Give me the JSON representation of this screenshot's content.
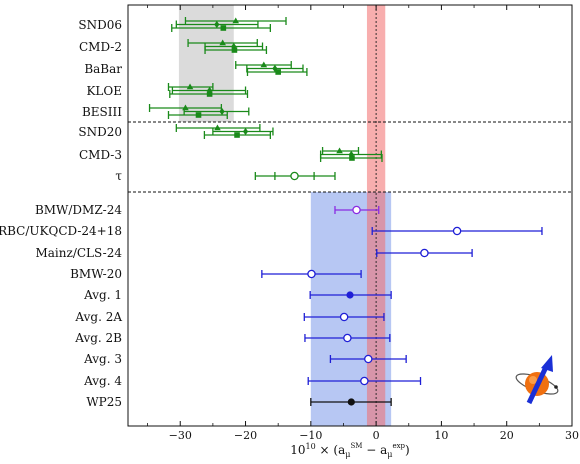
{
  "chart_data": {
    "type": "scatter",
    "xlabel": "10^10 × (a_μ^SM − a_μ^exp)",
    "xlabel_parts": {
      "prefix": "10",
      "exp": "10",
      "mid": " × (a",
      "sub1": "μ",
      "sup1": "SM",
      "dash": " − a",
      "sub2": "μ",
      "sup2": "exp",
      "suffix": ")"
    },
    "xlim": [
      -38,
      30
    ],
    "xticks": [
      -30,
      -20,
      -10,
      0,
      10,
      20,
      30
    ],
    "grid": false,
    "colors": {
      "data_driven": "#1a8a1a",
      "lattice_purple": "#8a2be2",
      "lattice_blue": "#1f1fd6",
      "average": "#111111",
      "experiment_band": "#f26b6b",
      "wp25_band": "#6f8fe8",
      "excluded_band": "#bdbdbd"
    },
    "bands": {
      "experiment": [
        -1.4,
        1.4
      ],
      "wp25": [
        -10.0,
        2.3
      ],
      "gray": [
        -30.2,
        -21.8
      ]
    },
    "groups": [
      {
        "label": "SND06",
        "points": [
          {
            "x": -21.5,
            "lo": -29.2,
            "hi": -13.8,
            "marker": "triangle"
          },
          {
            "x": -24.4,
            "lo": -30.6,
            "hi": -18.1,
            "marker": "diamond"
          },
          {
            "x": -23.4,
            "lo": -31.3,
            "hi": -16.2,
            "marker": "square"
          }
        ]
      },
      {
        "label": "CMD-2",
        "points": [
          {
            "x": -23.5,
            "lo": -28.8,
            "hi": -18.2,
            "marker": "triangle"
          },
          {
            "x": -21.8,
            "lo": -26.2,
            "hi": -17.4,
            "marker": "diamond"
          },
          {
            "x": -21.7,
            "lo": -26.2,
            "hi": -16.8,
            "marker": "square"
          }
        ]
      },
      {
        "label": "BaBar",
        "points": [
          {
            "x": -17.2,
            "lo": -21.5,
            "hi": -13.0,
            "marker": "triangle"
          },
          {
            "x": -15.5,
            "lo": -19.8,
            "hi": -11.2,
            "marker": "diamond"
          },
          {
            "x": -15.0,
            "lo": -19.7,
            "hi": -10.6,
            "marker": "square"
          }
        ]
      },
      {
        "label": "KLOE",
        "points": [
          {
            "x": -28.5,
            "lo": -31.8,
            "hi": -25.0,
            "marker": "triangle"
          },
          {
            "x": -25.5,
            "lo": -31.2,
            "hi": -20.0,
            "marker": "diamond"
          },
          {
            "x": -25.5,
            "lo": -31.6,
            "hi": -19.7,
            "marker": "square"
          }
        ]
      },
      {
        "label": "BESIII",
        "points": [
          {
            "x": -29.2,
            "lo": -34.7,
            "hi": -23.7,
            "marker": "triangle"
          },
          {
            "x": -23.6,
            "lo": -29.4,
            "hi": -19.5,
            "marker": "diamond"
          },
          {
            "x": -27.2,
            "lo": -31.8,
            "hi": -22.8,
            "marker": "square"
          }
        ]
      },
      {
        "label": "SND20",
        "points": [
          {
            "x": -24.3,
            "lo": -30.6,
            "hi": -17.8,
            "marker": "triangle"
          },
          {
            "x": -20.0,
            "lo": -25.0,
            "hi": -15.8,
            "marker": "diamond"
          },
          {
            "x": -21.3,
            "lo": -26.3,
            "hi": -16.2,
            "marker": "square"
          }
        ]
      },
      {
        "label": "CMD-3",
        "points": [
          {
            "x": -5.6,
            "lo": -8.2,
            "hi": -2.7,
            "marker": "triangle"
          },
          {
            "x": -3.8,
            "lo": -8.5,
            "hi": 0.8,
            "marker": "diamond"
          },
          {
            "x": -3.7,
            "lo": -8.5,
            "hi": 0.9,
            "marker": "square"
          }
        ]
      },
      {
        "label": "τ",
        "points": [
          {
            "x": -12.5,
            "lo": -18.5,
            "hi": -6.3,
            "marker": "open-circle",
            "inner_lo": -15.5,
            "inner_hi": -9.5
          }
        ]
      }
    ],
    "lattice": [
      {
        "label": "BMW/DMZ-24",
        "x": -3.0,
        "lo": -6.3,
        "hi": 0.4,
        "marker": "open-circle",
        "color": "lattice_purple"
      },
      {
        "label": "RBC/UKQCD-24+18",
        "x": 12.4,
        "lo": -0.6,
        "hi": 25.4,
        "marker": "open-circle",
        "color": "lattice_blue"
      },
      {
        "label": "Mainz/CLS-24",
        "x": 7.4,
        "lo": 0.1,
        "hi": 14.7,
        "marker": "open-circle",
        "color": "lattice_blue"
      },
      {
        "label": "BMW-20",
        "x": -9.9,
        "lo": -17.5,
        "hi": -2.3,
        "marker": "open-circle",
        "color": "lattice_blue"
      },
      {
        "label": "Avg. 1",
        "x": -4.0,
        "lo": -10.1,
        "hi": 2.3,
        "marker": "filled-circle",
        "color": "lattice_blue"
      },
      {
        "label": "Avg. 2A",
        "x": -4.9,
        "lo": -11.0,
        "hi": 1.2,
        "marker": "open-circle",
        "color": "lattice_blue"
      },
      {
        "label": "Avg. 2B",
        "x": -4.4,
        "lo": -10.9,
        "hi": 2.1,
        "marker": "open-circle",
        "color": "lattice_blue"
      },
      {
        "label": "Avg. 3",
        "x": -1.2,
        "lo": -7.0,
        "hi": 4.6,
        "marker": "open-circle",
        "color": "lattice_blue"
      },
      {
        "label": "Avg. 4",
        "x": -1.8,
        "lo": -10.4,
        "hi": 6.8,
        "marker": "open-circle",
        "color": "lattice_blue"
      },
      {
        "label": "WP25",
        "x": -3.8,
        "lo": -10.0,
        "hi": 2.3,
        "marker": "filled-circle",
        "color": "average"
      }
    ]
  }
}
